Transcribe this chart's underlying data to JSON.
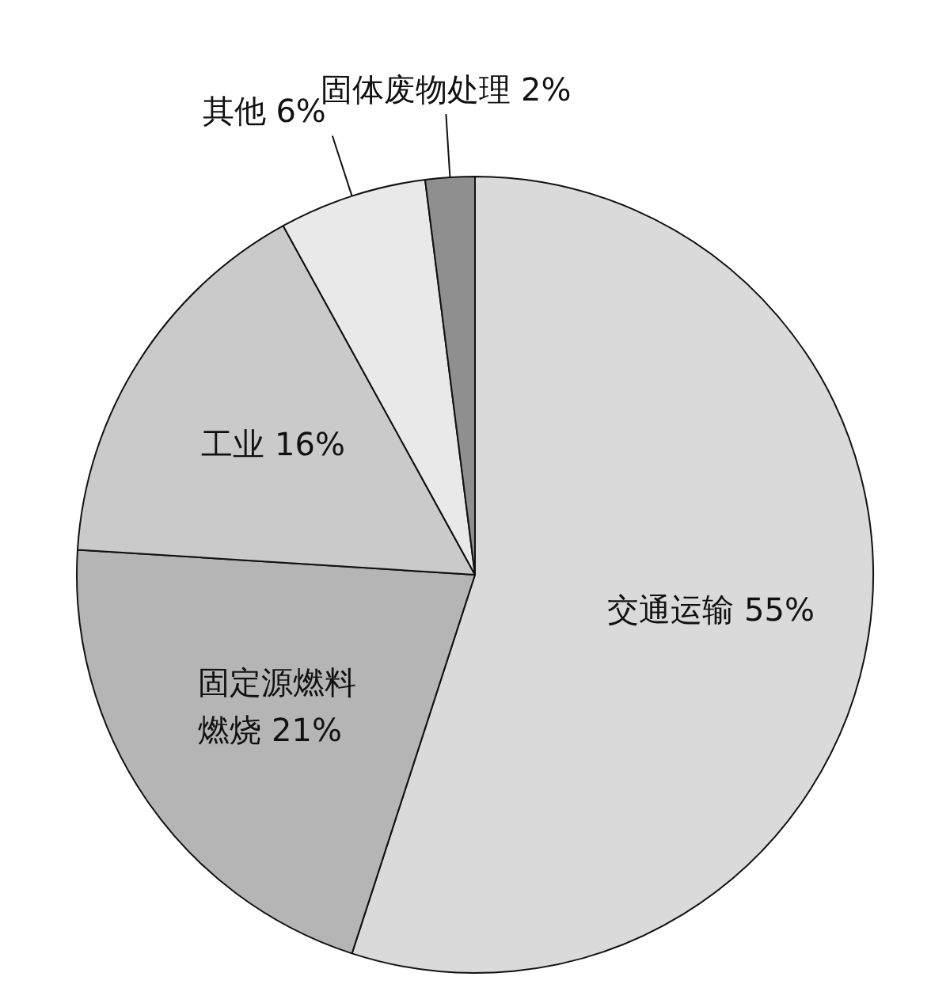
{
  "chart_data": {
    "type": "pie",
    "categories": [
      "交通运输",
      "固定源燃料燃烧",
      "工业",
      "其他",
      "固体废物处理"
    ],
    "values": [
      55,
      21,
      16,
      6,
      2
    ],
    "colors": [
      "#dadada",
      "#b5b5b5",
      "#cacaca",
      "#e9e9e9",
      "#8f8f8f"
    ],
    "value_labels": [
      "55%",
      "21%",
      "16%",
      "6%",
      "2%"
    ],
    "legend": false
  }
}
